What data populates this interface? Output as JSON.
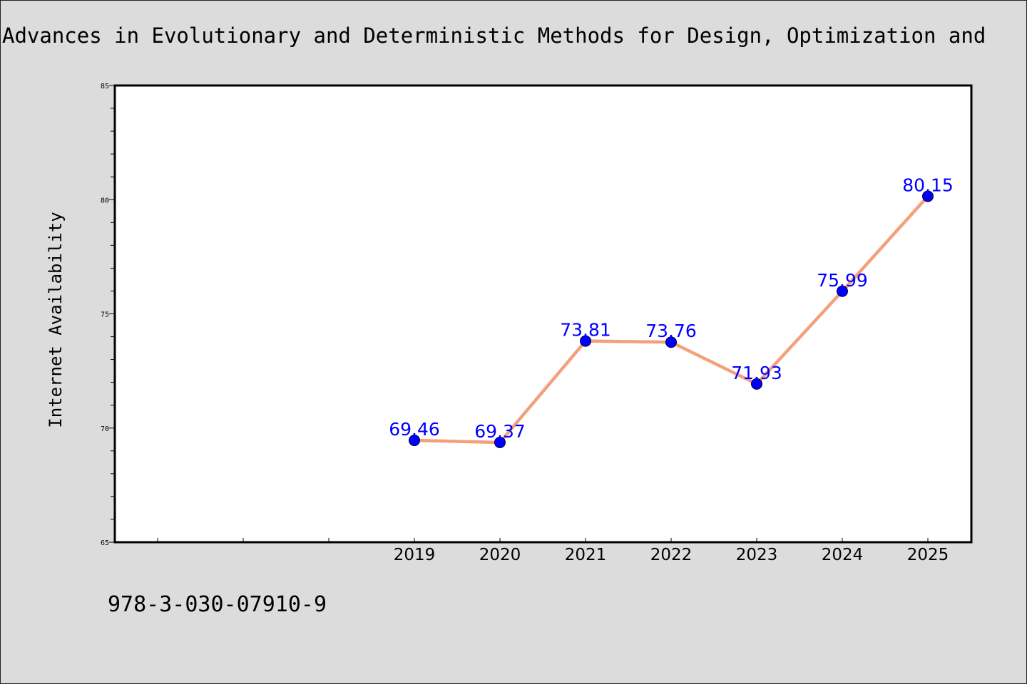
{
  "chart_data": {
    "type": "line",
    "title": "Advances in Evolutionary and Deterministic Methods for Design, Optimization and",
    "xlabel": "",
    "ylabel": "Internet Availability",
    "x": [
      "2019",
      "2020",
      "2021",
      "2022",
      "2023",
      "2024",
      "2025"
    ],
    "values": [
      69.46,
      69.37,
      73.81,
      73.76,
      71.93,
      75.99,
      80.15
    ],
    "data_labels": [
      "69.46",
      "69.37",
      "73.81",
      "73.76",
      "71.93",
      "75.99",
      "80.15"
    ],
    "ylim": [
      65,
      85
    ],
    "yticks": [
      65,
      70,
      75,
      80,
      85
    ],
    "ytick_labels": [
      "65",
      "70",
      "75",
      "80",
      "85"
    ],
    "grid": false,
    "legend": "none",
    "colors": {
      "line": "#f4a07a",
      "marker": "#0000ff",
      "marker_edge": "#000033",
      "data_label": "#0000ff",
      "background": "#dcdcdc",
      "plot_background": "#ffffff"
    }
  },
  "footer": {
    "isbn": "978-3-030-07910-9"
  }
}
